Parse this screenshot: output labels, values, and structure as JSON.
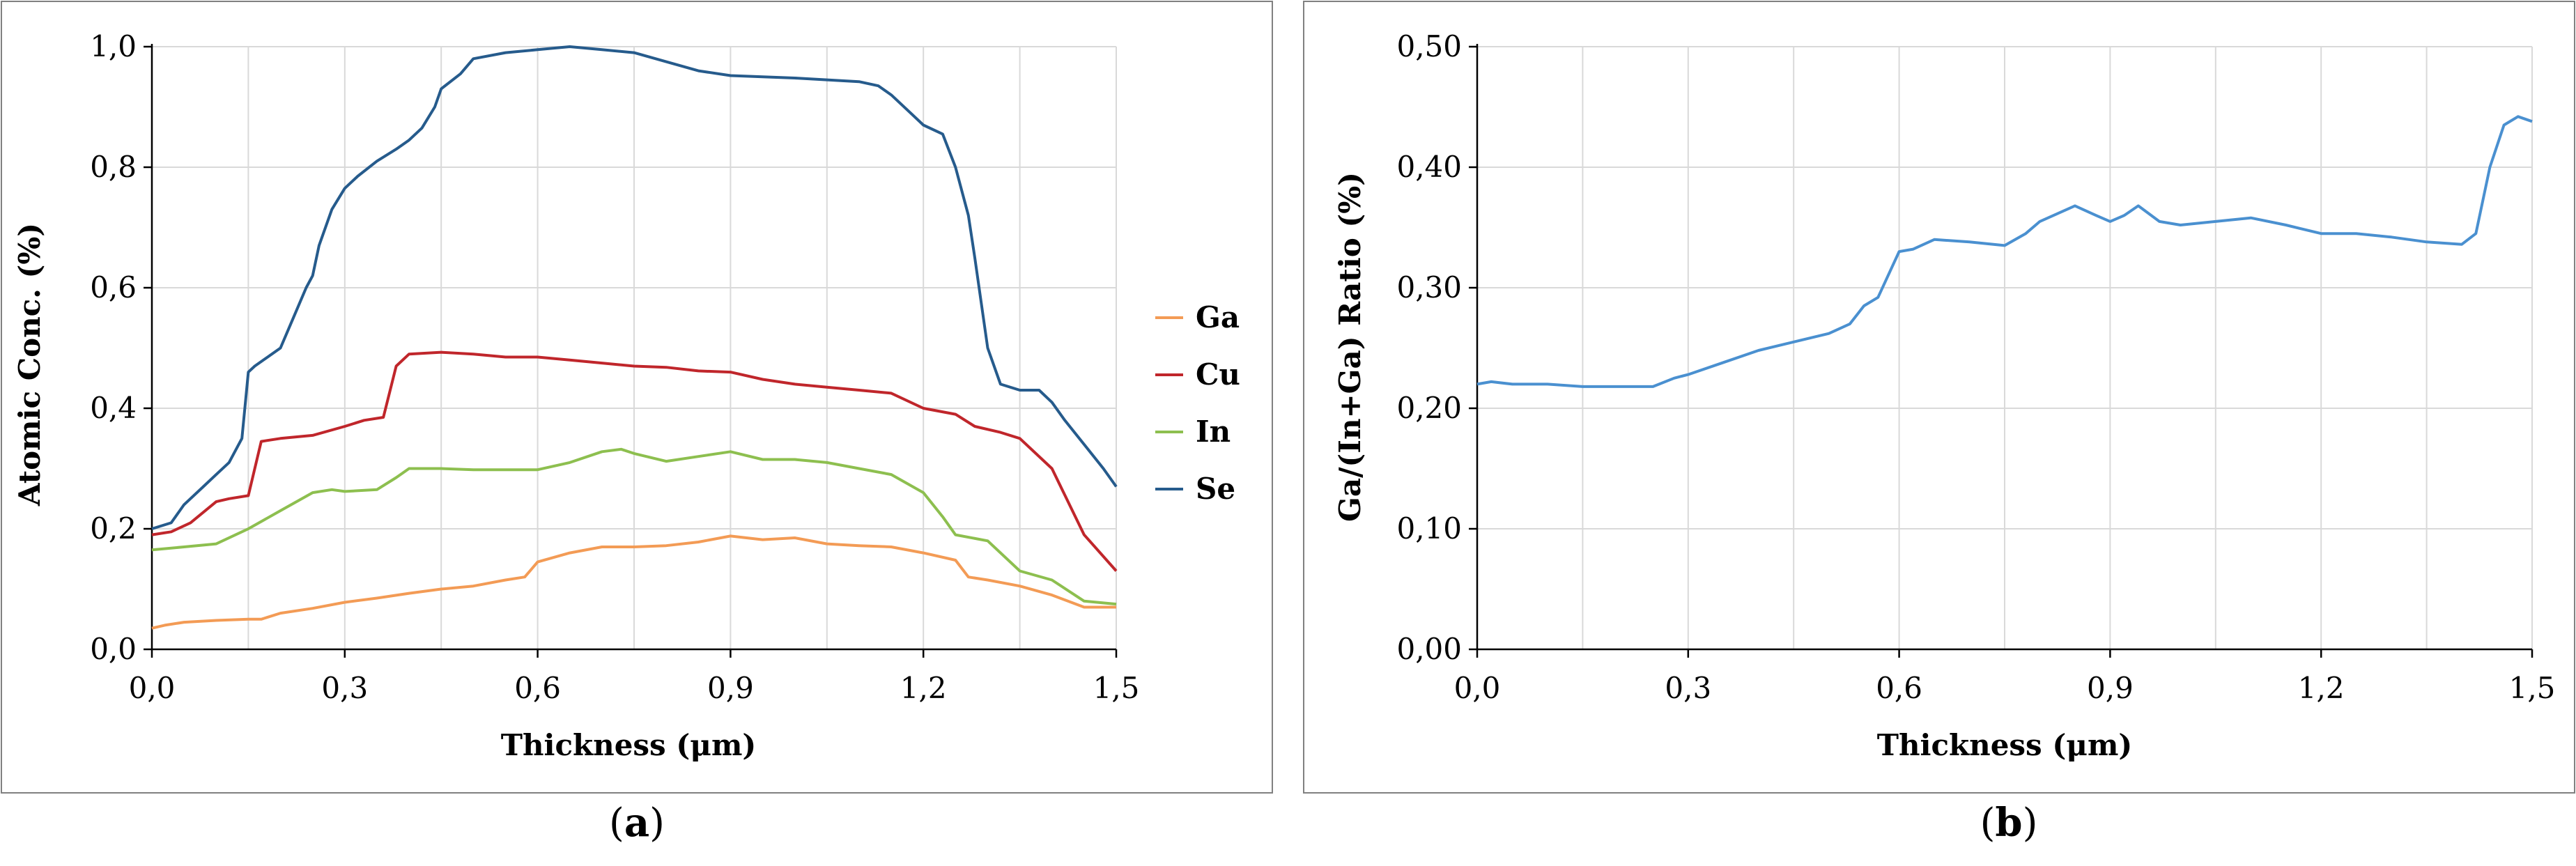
{
  "chart_data": [
    {
      "type": "line",
      "panel_label": "a",
      "xlabel": "Thickness (μm)",
      "ylabel": "Atomic Conc. (%)",
      "xlim": [
        0,
        1.5
      ],
      "ylim": [
        0,
        1.0
      ],
      "xticks": [
        "0,0",
        "0,3",
        "0,6",
        "0,9",
        "1,2",
        "1,5"
      ],
      "yticks": [
        "0,0",
        "0,2",
        "0,4",
        "0,6",
        "0,8",
        "1,0"
      ],
      "grid": true,
      "legend": "right",
      "series": [
        {
          "name": "Ga",
          "color": "#F39B55",
          "x": [
            0,
            0.02,
            0.05,
            0.1,
            0.15,
            0.17,
            0.2,
            0.25,
            0.3,
            0.35,
            0.4,
            0.45,
            0.5,
            0.55,
            0.58,
            0.6,
            0.65,
            0.7,
            0.75,
            0.8,
            0.85,
            0.9,
            0.95,
            1.0,
            1.05,
            1.1,
            1.15,
            1.2,
            1.25,
            1.27,
            1.3,
            1.35,
            1.4,
            1.45,
            1.5
          ],
          "y": [
            0.035,
            0.04,
            0.045,
            0.048,
            0.05,
            0.05,
            0.06,
            0.068,
            0.078,
            0.085,
            0.093,
            0.1,
            0.105,
            0.115,
            0.12,
            0.145,
            0.16,
            0.17,
            0.17,
            0.172,
            0.178,
            0.188,
            0.182,
            0.185,
            0.175,
            0.172,
            0.17,
            0.16,
            0.148,
            0.12,
            0.115,
            0.105,
            0.09,
            0.07,
            0.07
          ]
        },
        {
          "name": "Cu",
          "color": "#C0262B",
          "x": [
            0,
            0.03,
            0.06,
            0.1,
            0.12,
            0.15,
            0.17,
            0.2,
            0.25,
            0.3,
            0.33,
            0.36,
            0.38,
            0.4,
            0.45,
            0.5,
            0.55,
            0.6,
            0.65,
            0.7,
            0.75,
            0.8,
            0.85,
            0.9,
            0.95,
            1.0,
            1.05,
            1.1,
            1.15,
            1.2,
            1.25,
            1.28,
            1.32,
            1.35,
            1.4,
            1.45,
            1.5
          ],
          "y": [
            0.19,
            0.195,
            0.21,
            0.245,
            0.25,
            0.255,
            0.345,
            0.35,
            0.355,
            0.37,
            0.38,
            0.385,
            0.47,
            0.49,
            0.493,
            0.49,
            0.485,
            0.485,
            0.48,
            0.475,
            0.47,
            0.468,
            0.462,
            0.46,
            0.448,
            0.44,
            0.435,
            0.43,
            0.425,
            0.4,
            0.39,
            0.37,
            0.36,
            0.35,
            0.3,
            0.19,
            0.13
          ]
        },
        {
          "name": "In",
          "color": "#8DBF4F",
          "x": [
            0,
            0.05,
            0.1,
            0.15,
            0.2,
            0.25,
            0.28,
            0.3,
            0.35,
            0.38,
            0.4,
            0.45,
            0.5,
            0.55,
            0.6,
            0.65,
            0.7,
            0.73,
            0.75,
            0.8,
            0.85,
            0.9,
            0.95,
            1.0,
            1.05,
            1.1,
            1.15,
            1.2,
            1.23,
            1.25,
            1.3,
            1.35,
            1.4,
            1.45,
            1.5
          ],
          "y": [
            0.165,
            0.17,
            0.175,
            0.2,
            0.23,
            0.26,
            0.265,
            0.262,
            0.265,
            0.285,
            0.3,
            0.3,
            0.298,
            0.298,
            0.298,
            0.31,
            0.328,
            0.332,
            0.325,
            0.312,
            0.32,
            0.328,
            0.315,
            0.315,
            0.31,
            0.3,
            0.29,
            0.26,
            0.22,
            0.19,
            0.18,
            0.13,
            0.115,
            0.08,
            0.075
          ]
        },
        {
          "name": "Se",
          "color": "#265B8C",
          "x": [
            0,
            0.03,
            0.05,
            0.08,
            0.1,
            0.12,
            0.14,
            0.15,
            0.16,
            0.18,
            0.2,
            0.22,
            0.24,
            0.25,
            0.26,
            0.28,
            0.3,
            0.32,
            0.35,
            0.38,
            0.4,
            0.42,
            0.44,
            0.45,
            0.48,
            0.5,
            0.55,
            0.6,
            0.65,
            0.7,
            0.75,
            0.8,
            0.85,
            0.9,
            0.95,
            1.0,
            1.05,
            1.1,
            1.13,
            1.15,
            1.18,
            1.2,
            1.23,
            1.25,
            1.27,
            1.28,
            1.3,
            1.32,
            1.35,
            1.38,
            1.4,
            1.42,
            1.45,
            1.48,
            1.5
          ],
          "y": [
            0.2,
            0.21,
            0.24,
            0.27,
            0.29,
            0.31,
            0.35,
            0.46,
            0.47,
            0.485,
            0.5,
            0.55,
            0.6,
            0.62,
            0.67,
            0.73,
            0.765,
            0.785,
            0.81,
            0.83,
            0.845,
            0.865,
            0.9,
            0.93,
            0.955,
            0.98,
            0.99,
            0.995,
            1.0,
            0.995,
            0.99,
            0.975,
            0.96,
            0.952,
            0.95,
            0.948,
            0.945,
            0.942,
            0.935,
            0.92,
            0.89,
            0.87,
            0.855,
            0.8,
            0.72,
            0.65,
            0.5,
            0.44,
            0.43,
            0.43,
            0.41,
            0.38,
            0.34,
            0.3,
            0.27
          ]
        }
      ]
    },
    {
      "type": "line",
      "panel_label": "b",
      "xlabel": "Thickness (μm)",
      "ylabel": "Ga/(In+Ga) Ratio (%)",
      "xlim": [
        0,
        1.5
      ],
      "ylim": [
        0,
        0.5
      ],
      "xticks": [
        "0,0",
        "0,3",
        "0,6",
        "0,9",
        "1,2",
        "1,5"
      ],
      "yticks": [
        "0,00",
        "0,10",
        "0,20",
        "0,30",
        "0,40",
        "0,50"
      ],
      "grid": true,
      "legend": "none",
      "series": [
        {
          "name": "Ga/(In+Ga)",
          "color": "#4A90D0",
          "x": [
            0,
            0.02,
            0.05,
            0.1,
            0.15,
            0.2,
            0.25,
            0.28,
            0.3,
            0.35,
            0.4,
            0.45,
            0.5,
            0.53,
            0.55,
            0.57,
            0.6,
            0.62,
            0.65,
            0.7,
            0.75,
            0.78,
            0.8,
            0.85,
            0.88,
            0.9,
            0.92,
            0.94,
            0.97,
            1.0,
            1.05,
            1.1,
            1.15,
            1.2,
            1.25,
            1.3,
            1.35,
            1.4,
            1.42,
            1.44,
            1.46,
            1.48,
            1.5
          ],
          "y": [
            0.22,
            0.222,
            0.22,
            0.22,
            0.218,
            0.218,
            0.218,
            0.225,
            0.228,
            0.238,
            0.248,
            0.255,
            0.262,
            0.27,
            0.285,
            0.292,
            0.33,
            0.332,
            0.34,
            0.338,
            0.335,
            0.345,
            0.355,
            0.368,
            0.36,
            0.355,
            0.36,
            0.368,
            0.355,
            0.352,
            0.355,
            0.358,
            0.352,
            0.345,
            0.345,
            0.342,
            0.338,
            0.336,
            0.345,
            0.4,
            0.435,
            0.442,
            0.438
          ]
        }
      ]
    }
  ],
  "captions": {
    "a": "a",
    "b": "b"
  }
}
